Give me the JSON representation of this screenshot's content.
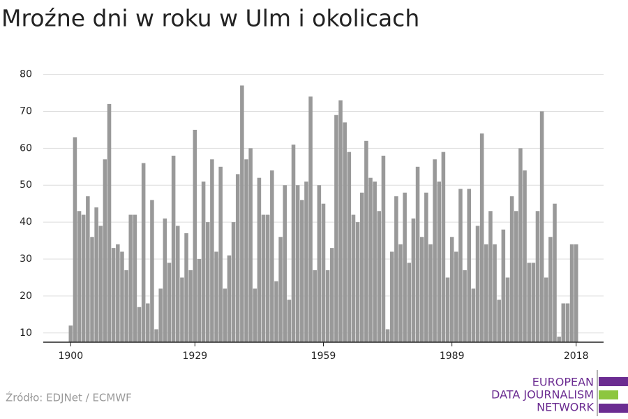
{
  "chart_data": {
    "type": "bar",
    "title": "Mroźne dni w roku w Ulm i okolicach",
    "source": "Źródło: EDJNet / ECMWF",
    "logo": [
      "EUROPEAN",
      "DATA JOURNALISM",
      "NETWORK"
    ],
    "color": "#999999",
    "grid": true,
    "x": [
      1900,
      1901,
      1902,
      1903,
      1904,
      1905,
      1906,
      1907,
      1908,
      1909,
      1910,
      1911,
      1912,
      1913,
      1914,
      1915,
      1916,
      1917,
      1918,
      1919,
      1920,
      1921,
      1922,
      1923,
      1924,
      1925,
      1926,
      1927,
      1928,
      1929,
      1930,
      1931,
      1932,
      1933,
      1934,
      1935,
      1936,
      1937,
      1938,
      1939,
      1940,
      1941,
      1942,
      1943,
      1944,
      1945,
      1946,
      1947,
      1948,
      1949,
      1950,
      1951,
      1952,
      1953,
      1954,
      1955,
      1956,
      1957,
      1958,
      1959,
      1960,
      1961,
      1962,
      1963,
      1964,
      1965,
      1966,
      1967,
      1968,
      1969,
      1970,
      1971,
      1972,
      1973,
      1974,
      1975,
      1976,
      1977,
      1978,
      1979,
      1980,
      1981,
      1982,
      1983,
      1984,
      1985,
      1986,
      1987,
      1988,
      1989,
      1990,
      1991,
      1992,
      1993,
      1994,
      1995,
      1996,
      1997,
      1998,
      1999,
      2000,
      2001,
      2002,
      2003,
      2004,
      2005,
      2006,
      2007,
      2008,
      2009,
      2010,
      2011,
      2012,
      2013,
      2014,
      2015,
      2016,
      2017,
      2018
    ],
    "values": [
      12,
      63,
      43,
      42,
      47,
      36,
      44,
      39,
      57,
      72,
      33,
      34,
      32,
      27,
      42,
      42,
      17,
      56,
      18,
      46,
      11,
      22,
      41,
      29,
      58,
      39,
      25,
      37,
      27,
      65,
      30,
      51,
      40,
      57,
      32,
      55,
      22,
      31,
      40,
      53,
      77,
      57,
      60,
      22,
      52,
      42,
      42,
      54,
      24,
      36,
      50,
      19,
      61,
      50,
      46,
      51,
      74,
      27,
      50,
      45,
      27,
      33,
      69,
      73,
      67,
      59,
      42,
      40,
      48,
      62,
      52,
      51,
      43,
      58,
      11,
      32,
      47,
      34,
      48,
      29,
      41,
      55,
      36,
      48,
      34,
      57,
      51,
      59,
      25,
      36,
      32,
      49,
      27,
      49,
      22,
      39,
      64,
      34,
      43,
      34,
      19,
      38,
      25,
      47,
      43,
      60,
      54,
      29,
      29,
      43,
      70,
      25,
      36,
      45,
      9,
      18,
      18,
      34,
      34
    ],
    "xlim": [
      1893.6,
      2024.4
    ],
    "xticks": [
      1900,
      1929,
      1959,
      1989,
      2018
    ],
    "ylim": [
      7.5,
      82
    ],
    "yticks": [
      10,
      20,
      30,
      40,
      50,
      60,
      70,
      80
    ]
  }
}
